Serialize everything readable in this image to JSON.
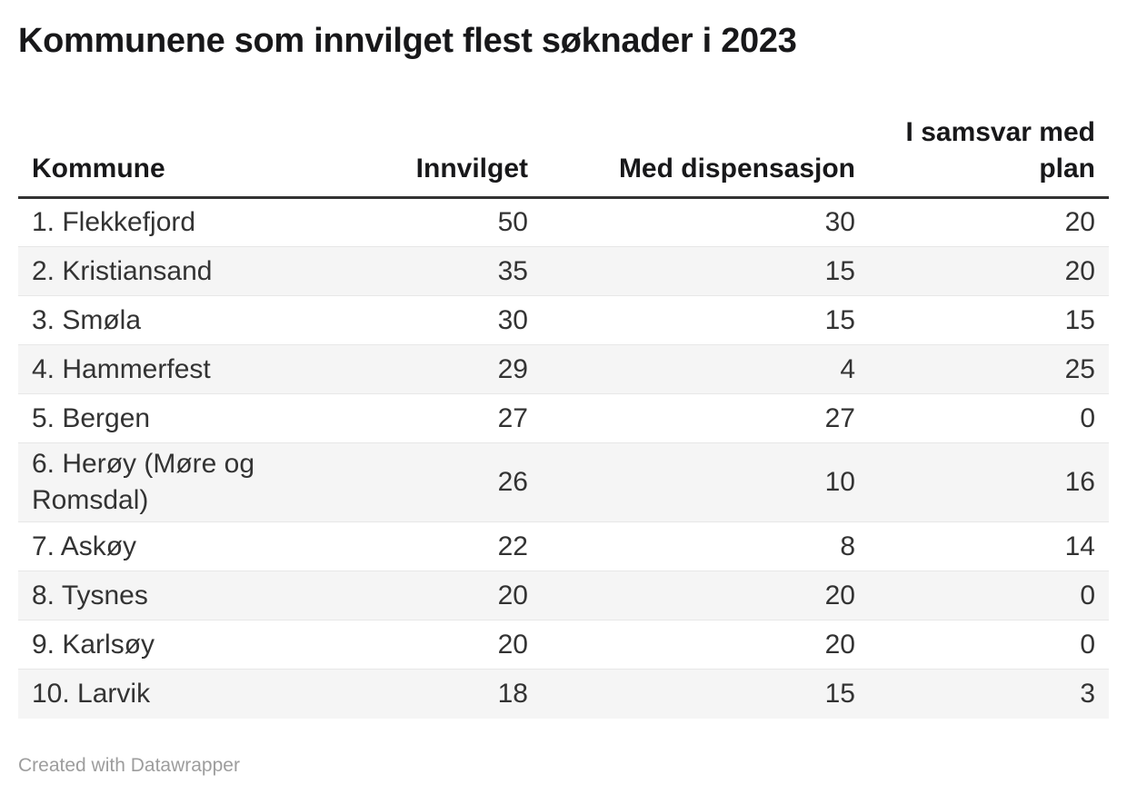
{
  "chart_data": {
    "type": "table",
    "title": "Kommunene som innvilget flest søknader i 2023",
    "columns": [
      "Kommune",
      "Innvilget",
      "Med dispensasjon",
      "I samsvar med plan"
    ],
    "rows": [
      [
        "1. Flekkefjord",
        50,
        30,
        20
      ],
      [
        "2. Kristiansand",
        35,
        15,
        20
      ],
      [
        "3. Smøla",
        30,
        15,
        15
      ],
      [
        "4. Hammerfest",
        29,
        4,
        25
      ],
      [
        "5. Bergen",
        27,
        27,
        0
      ],
      [
        "6. Herøy (Møre og Romsdal)",
        26,
        10,
        16
      ],
      [
        "7. Askøy",
        22,
        8,
        14
      ],
      [
        "8. Tysnes",
        20,
        20,
        0
      ],
      [
        "9. Karlsøy",
        20,
        20,
        0
      ],
      [
        "10. Larvik",
        18,
        15,
        3
      ]
    ],
    "layout_hints": {
      "numeric_columns_right_aligned": true,
      "zebra_striping": true,
      "header_rule": "thick-dark"
    }
  },
  "footer": {
    "attribution": "Created with Datawrapper"
  },
  "colors": {
    "title_text": "#18181a",
    "body_text": "#333333",
    "header_rule": "#333333",
    "row_stripe": "#f5f5f5",
    "row_border": "#e7e7e7",
    "attribution_text": "#9d9d9d",
    "background": "#ffffff"
  }
}
